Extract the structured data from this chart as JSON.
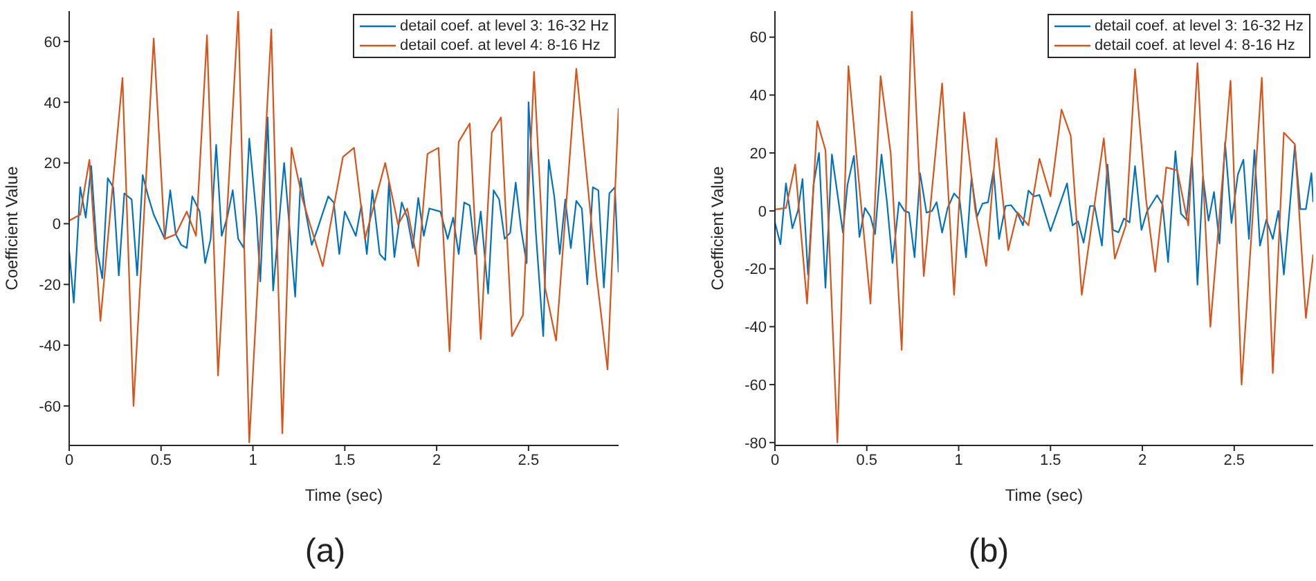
{
  "chart_data": [
    {
      "type": "line",
      "xlabel": "Time (sec)",
      "ylabel": "Coefficient Value",
      "xlim": [
        0,
        2.99
      ],
      "ylim": [
        -73,
        70
      ],
      "xticks": [
        0,
        0.5,
        1,
        1.5,
        2,
        2.5
      ],
      "yticks": [
        -60,
        -40,
        -20,
        0,
        20,
        40,
        60
      ],
      "grid": false,
      "legend": "top right",
      "marker": "none",
      "line_style": "solid",
      "annotations": [
        "(a)"
      ],
      "series": [
        {
          "name": "detail coef. at level 3: 16-32 Hz",
          "color": "#0072bd",
          "x": [
            0,
            0.025,
            0.06,
            0.09,
            0.12,
            0.15,
            0.18,
            0.21,
            0.24,
            0.27,
            0.3,
            0.34,
            0.37,
            0.4,
            0.43,
            0.46,
            0.49,
            0.52,
            0.55,
            0.58,
            0.61,
            0.64,
            0.67,
            0.71,
            0.74,
            0.77,
            0.8,
            0.83,
            0.86,
            0.89,
            0.92,
            0.95,
            0.98,
            1.02,
            1.04,
            1.08,
            1.11,
            1.17,
            1.23,
            1.26,
            1.29,
            1.32,
            1.35,
            1.41,
            1.44,
            1.47,
            1.5,
            1.56,
            1.59,
            1.62,
            1.65,
            1.69,
            1.72,
            1.74,
            1.77,
            1.81,
            1.84,
            1.87,
            1.9,
            1.93,
            1.96,
            2.02,
            2.06,
            2.09,
            2.12,
            2.15,
            2.18,
            2.21,
            2.24,
            2.28,
            2.31,
            2.34,
            2.37,
            2.4,
            2.43,
            2.46,
            2.49,
            2.5,
            2.54,
            2.58,
            2.61,
            2.64,
            2.67,
            2.7,
            2.73,
            2.76,
            2.79,
            2.82,
            2.85,
            2.88,
            2.91,
            2.94,
            2.97,
            2.99
          ],
          "values": [
            -9,
            -26,
            12,
            2,
            19,
            -8,
            -18,
            15,
            12,
            -17,
            10,
            8,
            -17,
            16,
            9,
            3,
            -1,
            -5,
            11,
            -3.5,
            -7,
            -8,
            9,
            4,
            -13,
            -5,
            26,
            -4,
            2,
            11,
            -5,
            -8,
            28,
            2,
            -19,
            35,
            -22,
            20,
            -24,
            15,
            3,
            -7,
            -2,
            9,
            7,
            -10,
            4,
            -4,
            6,
            -10,
            11,
            -10,
            -12,
            13.5,
            -11,
            7,
            2,
            -8,
            8.5,
            -4,
            5,
            4,
            -5,
            2,
            -10,
            7,
            6,
            -10,
            4,
            -23,
            11,
            8,
            -5,
            -3,
            13.5,
            -2,
            -13,
            40,
            -3,
            -37,
            21,
            9,
            -10,
            8,
            -8,
            7.5,
            5,
            -20,
            12,
            11,
            -21,
            10,
            12,
            -16
          ]
        },
        {
          "name": "detail coef. at level 4: 8-16 Hz",
          "color": "#d95319",
          "x": [
            0,
            0.06,
            0.11,
            0.17,
            0.29,
            0.35,
            0.46,
            0.52,
            0.58,
            0.64,
            0.69,
            0.75,
            0.81,
            0.92,
            0.98,
            1.1,
            1.16,
            1.21,
            1.27,
            1.32,
            1.38,
            1.49,
            1.55,
            1.61,
            1.72,
            1.79,
            1.84,
            1.9,
            1.95,
            2.01,
            2.07,
            2.12,
            2.18,
            2.24,
            2.3,
            2.35,
            2.41,
            2.47,
            2.53,
            2.59,
            2.65,
            2.76,
            2.87,
            2.93,
            2.99
          ],
          "values": [
            1,
            3,
            21,
            -32,
            48,
            -60,
            61,
            -5,
            -3.5,
            4,
            -4,
            62,
            -50,
            70,
            -72,
            64,
            -69,
            25,
            8,
            -2,
            -14,
            22,
            25,
            -5,
            20,
            -0.3,
            5,
            -14,
            23,
            25,
            -42,
            27,
            33,
            -38,
            30,
            35,
            -37,
            -30,
            50,
            -21,
            -38.5,
            51,
            -17,
            -48,
            38
          ]
        }
      ]
    },
    {
      "type": "line",
      "xlabel": "Time (sec)",
      "ylabel": "Coefficient Value",
      "xlim": [
        0,
        2.93
      ],
      "ylim": [
        -81,
        69
      ],
      "xticks": [
        0,
        0.5,
        1,
        1.5,
        2,
        2.5
      ],
      "yticks": [
        -80,
        -60,
        -40,
        -20,
        0,
        20,
        40,
        60
      ],
      "grid": false,
      "legend": "top right",
      "marker": "none",
      "line_style": "solid",
      "annotations": [
        "(b)"
      ],
      "series": [
        {
          "name": "detail coef. at level 3: 16-32 Hz",
          "color": "#0072bd",
          "x": [
            0,
            0.03,
            0.06,
            0.095,
            0.125,
            0.15,
            0.18,
            0.21,
            0.24,
            0.275,
            0.31,
            0.34,
            0.37,
            0.395,
            0.43,
            0.46,
            0.49,
            0.52,
            0.545,
            0.58,
            0.61,
            0.64,
            0.675,
            0.705,
            0.73,
            0.76,
            0.79,
            0.825,
            0.855,
            0.88,
            0.91,
            0.94,
            0.975,
            1.005,
            1.04,
            1.07,
            1.1,
            1.13,
            1.16,
            1.19,
            1.22,
            1.255,
            1.285,
            1.32,
            1.35,
            1.38,
            1.41,
            1.44,
            1.5,
            1.59,
            1.62,
            1.65,
            1.68,
            1.715,
            1.74,
            1.78,
            1.81,
            1.84,
            1.87,
            1.9,
            1.93,
            1.96,
            1.995,
            2.025,
            2.08,
            2.11,
            2.14,
            2.18,
            2.21,
            2.24,
            2.27,
            2.3,
            2.33,
            2.36,
            2.39,
            2.42,
            2.45,
            2.485,
            2.52,
            2.55,
            2.58,
            2.61,
            2.64,
            2.675,
            2.71,
            2.74,
            2.77,
            2.795,
            2.83,
            2.86,
            2.89,
            2.92,
            2.93
          ],
          "values": [
            -4,
            -11.5,
            9.5,
            -6,
            0,
            11,
            -22,
            9,
            20,
            -26.5,
            19.5,
            6,
            -7.5,
            9,
            19,
            -9,
            1,
            -2,
            -8,
            19.5,
            3,
            -18,
            3,
            0,
            -0.6,
            -16,
            13,
            -0.6,
            0,
            3,
            -7.5,
            1,
            6,
            4,
            -16,
            11.5,
            -2,
            2.5,
            3,
            14,
            -9.7,
            1.7,
            2,
            -0.9,
            -5,
            7,
            5,
            5.5,
            -7,
            9.5,
            -5,
            -3.6,
            -11,
            1.7,
            1.7,
            -12,
            16,
            -6.6,
            -7.4,
            -2.6,
            -4,
            15.5,
            -6.6,
            -0.2,
            5.4,
            2.2,
            -17.7,
            20.6,
            -1,
            -3,
            18.7,
            -25.5,
            11.8,
            -3.4,
            6.5,
            -11.3,
            23.7,
            -4.2,
            12.6,
            17.7,
            -9.7,
            21,
            -12,
            -3,
            -9.7,
            0,
            -22,
            -4.2,
            22.5,
            0.6,
            0.6,
            13,
            3
          ]
        },
        {
          "name": "detail coef. at level 4: 8-16 Hz",
          "color": "#d95319",
          "x": [
            0,
            0.06,
            0.11,
            0.175,
            0.23,
            0.275,
            0.34,
            0.4,
            0.46,
            0.52,
            0.575,
            0.63,
            0.69,
            0.745,
            0.81,
            0.91,
            0.975,
            1.03,
            1.09,
            1.15,
            1.205,
            1.27,
            1.32,
            1.38,
            1.44,
            1.5,
            1.56,
            1.61,
            1.67,
            1.79,
            1.85,
            1.91,
            1.96,
            2.02,
            2.07,
            2.13,
            2.19,
            2.25,
            2.3,
            2.37,
            2.48,
            2.54,
            2.65,
            2.71,
            2.77,
            2.83,
            2.89,
            2.93
          ],
          "values": [
            0.5,
            1,
            16,
            -32,
            31,
            21,
            -80,
            50,
            8,
            -32,
            46.5,
            20,
            -48,
            69,
            -22.5,
            44,
            -29,
            34,
            0.5,
            -19,
            25,
            -13.6,
            -0.5,
            -5,
            18,
            5,
            35,
            26,
            -29,
            25,
            -16.5,
            -5,
            49,
            4,
            -21,
            15,
            14,
            -5,
            51,
            -40,
            45,
            -60,
            46,
            -56,
            27,
            23,
            -37,
            -15
          ]
        }
      ]
    }
  ]
}
